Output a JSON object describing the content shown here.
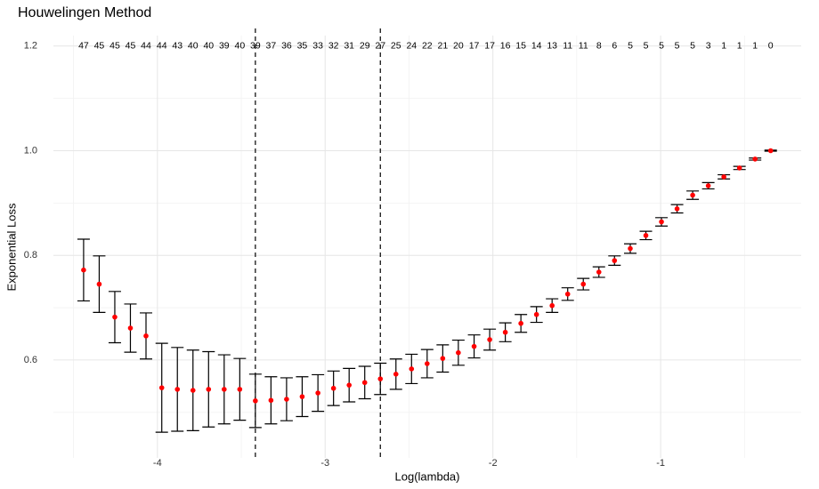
{
  "chart_data": {
    "type": "errorbar",
    "title": "Houwelingen Method",
    "x_label": "Log(lambda)",
    "y_label": "Exponential Loss",
    "x": [
      -4.44,
      -4.347,
      -4.254,
      -4.161,
      -4.068,
      -3.974,
      -3.881,
      -3.788,
      -3.695,
      -3.602,
      -3.509,
      -3.416,
      -3.323,
      -3.23,
      -3.137,
      -3.043,
      -2.95,
      -2.857,
      -2.764,
      -2.671,
      -2.578,
      -2.485,
      -2.392,
      -2.299,
      -2.206,
      -2.112,
      -2.019,
      -1.926,
      -1.833,
      -1.74,
      -1.647,
      -1.554,
      -1.461,
      -1.368,
      -1.275,
      -1.181,
      -1.088,
      -0.995,
      -0.902,
      -0.809,
      -0.716,
      -0.623,
      -0.53,
      -0.437,
      -0.344
    ],
    "values": [
      0.772,
      0.745,
      0.682,
      0.661,
      0.646,
      0.547,
      0.544,
      0.542,
      0.544,
      0.544,
      0.544,
      0.522,
      0.523,
      0.525,
      0.53,
      0.537,
      0.546,
      0.552,
      0.557,
      0.564,
      0.573,
      0.583,
      0.593,
      0.603,
      0.614,
      0.626,
      0.639,
      0.653,
      0.67,
      0.687,
      0.704,
      0.726,
      0.745,
      0.768,
      0.79,
      0.813,
      0.838,
      0.864,
      0.889,
      0.915,
      0.933,
      0.95,
      0.967,
      0.984,
      1.0
    ],
    "error": [
      0.059,
      0.054,
      0.049,
      0.046,
      0.044,
      0.085,
      0.08,
      0.077,
      0.072,
      0.066,
      0.059,
      0.051,
      0.045,
      0.041,
      0.038,
      0.035,
      0.033,
      0.032,
      0.031,
      0.03,
      0.029,
      0.028,
      0.027,
      0.026,
      0.024,
      0.022,
      0.02,
      0.018,
      0.017,
      0.015,
      0.013,
      0.012,
      0.011,
      0.01,
      0.009,
      0.009,
      0.008,
      0.008,
      0.008,
      0.008,
      0.006,
      0.004,
      0.003,
      0.002,
      0.001
    ],
    "nonzero": [
      47,
      45,
      45,
      45,
      44,
      44,
      43,
      40,
      40,
      39,
      40,
      39,
      37,
      36,
      35,
      33,
      32,
      31,
      29,
      27,
      25,
      24,
      22,
      21,
      20,
      17,
      17,
      16,
      15,
      14,
      13,
      11,
      11,
      8,
      6,
      5,
      5,
      5,
      5,
      5,
      3,
      1,
      1,
      1,
      0
    ],
    "nonzero_y": 1.2,
    "color": "#ff0000",
    "vlines": [
      -3.416,
      -2.671
    ],
    "xlim": [
      -4.62,
      -0.162
    ],
    "ylim": [
      0.413,
      1.22
    ],
    "xticks": [
      -4,
      -3,
      -2,
      -1
    ],
    "yticks": [
      0.6,
      0.8,
      {
        "value": 1.0,
        "label": "1.0"
      },
      1.2
    ],
    "minor_xticks": [
      -4.5,
      -3.5,
      -2.5,
      -1.5,
      -0.5
    ],
    "minor_yticks": [
      0.5,
      0.7,
      0.9,
      1.1
    ],
    "grid": true
  }
}
